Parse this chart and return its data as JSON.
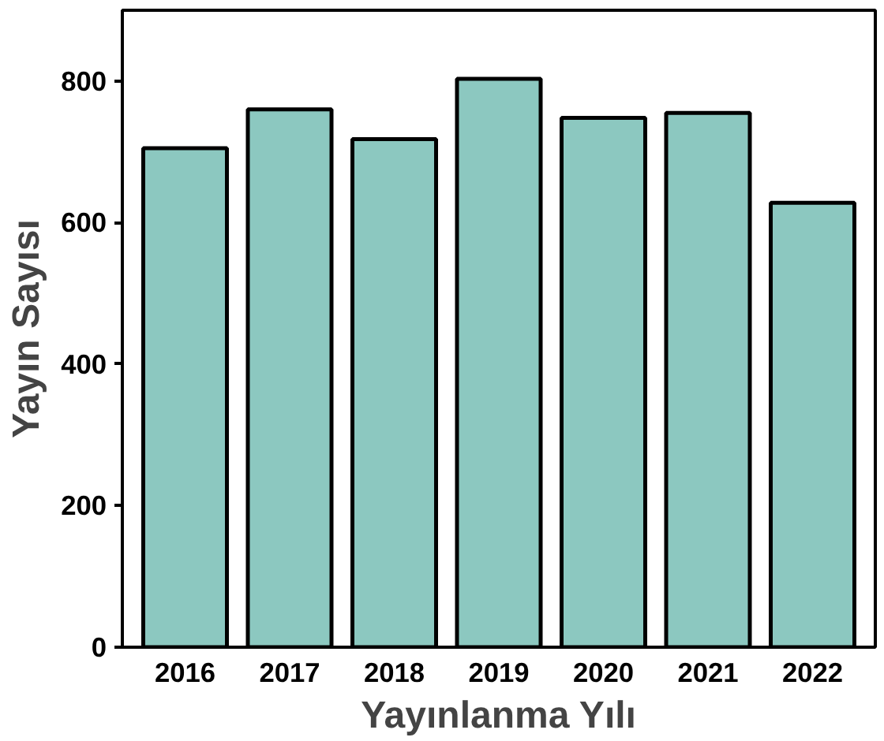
{
  "chart_data": {
    "type": "bar",
    "xlabel": "Yayınlanma Yılı",
    "ylabel": "Yayın Sayısı",
    "categories": [
      "2016",
      "2017",
      "2018",
      "2019",
      "2020",
      "2021",
      "2022"
    ],
    "values": [
      705,
      760,
      718,
      803,
      748,
      755,
      628
    ],
    "color": "#8cc8c0",
    "ylim": [
      0,
      900
    ],
    "yticks": [
      0,
      200,
      400,
      600,
      800
    ],
    "grid": false
  }
}
